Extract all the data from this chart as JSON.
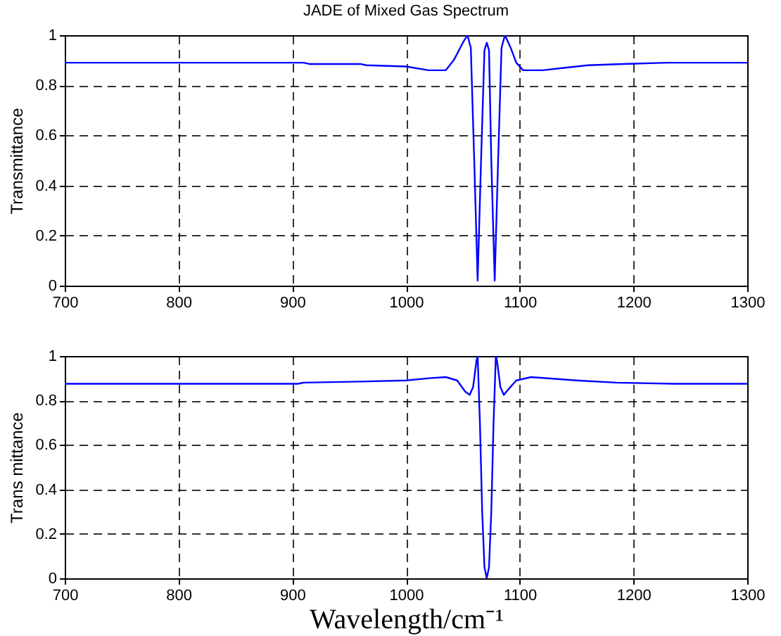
{
  "chart_data": [
    {
      "type": "line",
      "title": "JADE of Mixed Gas Spectrum",
      "ylabel": "Transmittance",
      "xlim": [
        700,
        1300
      ],
      "xticks": [
        700,
        800,
        900,
        1000,
        1100,
        1200,
        1300
      ],
      "ylim": [
        0,
        1
      ],
      "yticks": [
        0,
        0.2,
        0.4,
        0.6,
        0.8,
        1
      ],
      "grid": true,
      "marker": "none",
      "line_style": "solid",
      "x": [
        700,
        910,
        915,
        960,
        965,
        1000,
        1020,
        1035,
        1042,
        1050,
        1054,
        1057,
        1060,
        1063,
        1066,
        1069,
        1071,
        1073,
        1075,
        1078,
        1081,
        1084,
        1087,
        1092,
        1097,
        1103,
        1120,
        1140,
        1160,
        1190,
        1230,
        1300
      ],
      "series": [
        {
          "color": "#0000ff",
          "values": [
            0.89,
            0.89,
            0.885,
            0.885,
            0.88,
            0.875,
            0.86,
            0.86,
            0.9,
            0.97,
            1.0,
            0.95,
            0.5,
            0.02,
            0.5,
            0.94,
            0.97,
            0.94,
            0.5,
            0.02,
            0.5,
            0.95,
            1.0,
            0.95,
            0.89,
            0.86,
            0.86,
            0.87,
            0.88,
            0.885,
            0.89,
            0.89
          ]
        }
      ]
    },
    {
      "type": "line",
      "ylabel": "Trans mittance",
      "xlabel": "Wavelength/cm⁻¹",
      "xlim": [
        700,
        1300
      ],
      "xticks": [
        700,
        800,
        900,
        1000,
        1100,
        1200,
        1300
      ],
      "ylim": [
        0,
        1
      ],
      "yticks": [
        0,
        0.2,
        0.4,
        0.6,
        0.8,
        1
      ],
      "grid": true,
      "marker": "none",
      "line_style": "solid",
      "x": [
        700,
        905,
        910,
        960,
        1000,
        1020,
        1035,
        1045,
        1052,
        1056,
        1059,
        1062,
        1063,
        1065,
        1067,
        1069,
        1071,
        1073,
        1075,
        1077,
        1079,
        1080,
        1083,
        1086,
        1090,
        1097,
        1110,
        1150,
        1185,
        1235,
        1300
      ],
      "series": [
        {
          "color": "#0000ff",
          "values": [
            0.875,
            0.875,
            0.88,
            0.885,
            0.89,
            0.9,
            0.905,
            0.89,
            0.84,
            0.825,
            0.86,
            0.98,
            1.0,
            0.7,
            0.3,
            0.05,
            0.0,
            0.05,
            0.3,
            0.7,
            1.0,
            0.98,
            0.86,
            0.825,
            0.85,
            0.89,
            0.905,
            0.89,
            0.88,
            0.875,
            0.875
          ]
        }
      ]
    }
  ]
}
